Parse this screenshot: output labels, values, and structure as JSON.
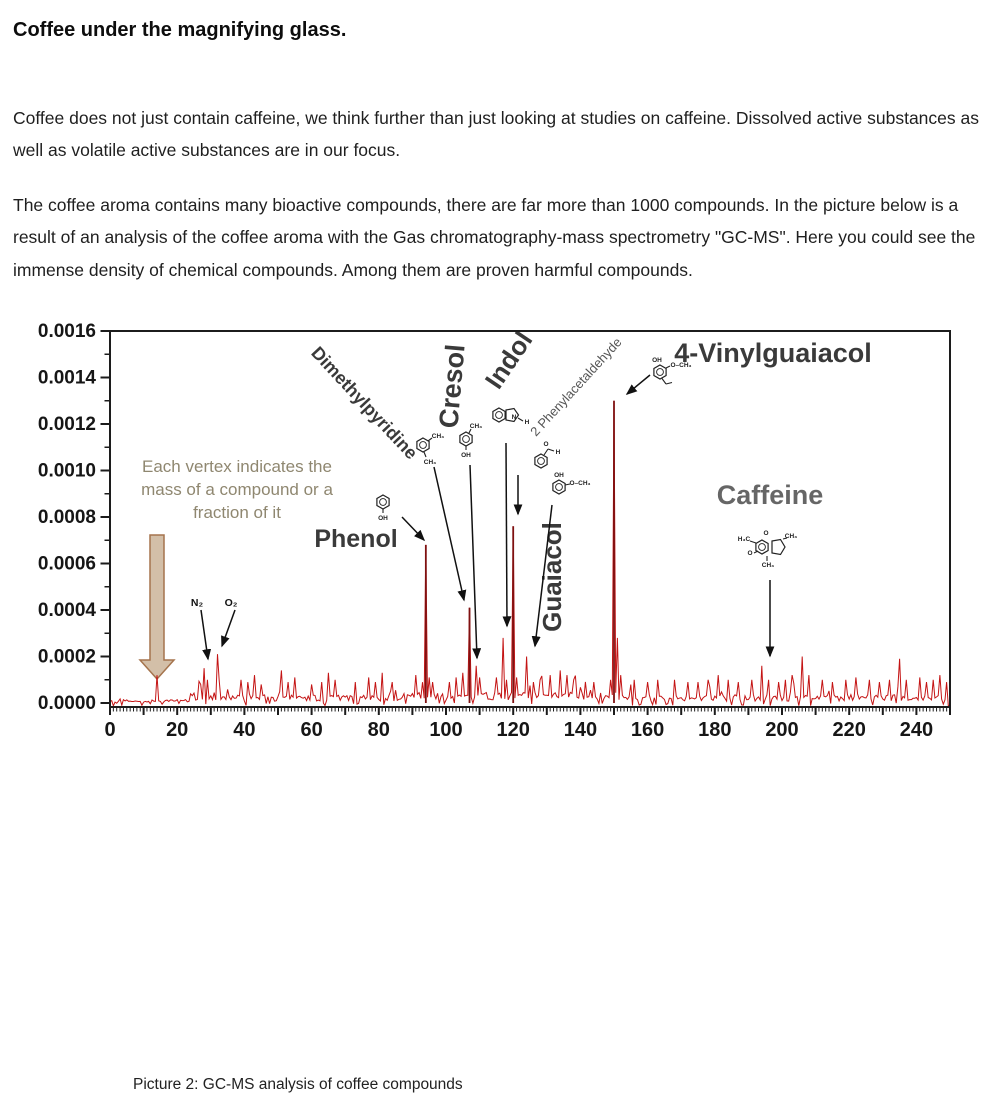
{
  "document": {
    "title": "Coffee under the magnifying glass.",
    "paragraphs": [
      "Coffee does not just contain caffeine, we think further than just looking at studies on caffeine. Dissolved active substances as well as volatile active substances are in our focus.",
      "The coffee aroma contains many bioactive compounds, there are far more than 1000 compounds. In the picture below is a result of an analysis of the coffee aroma with the Gas chromatography-mass spectrometry \"GC-MS\". Here you could see the immense density of chemical compounds. Among them are proven harmful compounds."
    ],
    "caption": "Picture 2: GC-MS analysis of coffee compounds"
  },
  "chart_data": {
    "type": "line",
    "subtype": "mass-spectrum",
    "title": "",
    "xlabel": "",
    "ylabel": "",
    "xlim": [
      0,
      250
    ],
    "ylim": [
      0,
      0.0016
    ],
    "x_tick_labels": [
      0,
      20,
      40,
      60,
      80,
      100,
      120,
      140,
      160,
      180,
      200,
      220,
      240
    ],
    "y_tick_labels": [
      "0.0000",
      "0.0002",
      "0.0004",
      "0.0006",
      "0.0008",
      "0.0010",
      "0.0012",
      "0.0014",
      "0.0016"
    ],
    "grid": false,
    "annotation": {
      "lines": [
        "Each vertex indicates the",
        "mass of a compound or a",
        "fraction of it"
      ]
    },
    "highlight_arrow_mass": 14,
    "labeled_peaks": [
      {
        "name": "nitrogen",
        "label": "N₂",
        "mass": 28,
        "intensity": 0.00015
      },
      {
        "name": "oxygen",
        "label": "O₂",
        "mass": 32,
        "intensity": 0.00021
      },
      {
        "name": "phenol",
        "label": "Phenol",
        "mass": 94,
        "intensity": 0.00068
      },
      {
        "name": "dimethylpyridine",
        "label": "Dimethylpyridine",
        "mass": 107,
        "intensity": 0.00041
      },
      {
        "name": "cresol",
        "label": "Cresol",
        "mass": 109,
        "intensity": 0.00016
      },
      {
        "name": "indol",
        "label": "Indol",
        "mass": 117,
        "intensity": 0.00028
      },
      {
        "name": "phenylacetaldehyde",
        "label": "2 Phenylacetaldehyde",
        "mass": 120,
        "intensity": 0.00076
      },
      {
        "name": "guaiacol",
        "label": "Guaiacol",
        "mass": 124,
        "intensity": 0.0002
      },
      {
        "name": "vinylguaiacol",
        "label": "4-Vinylguaiacol",
        "mass": 150,
        "intensity": 0.0013
      },
      {
        "name": "caffeine",
        "label": "Caffeine",
        "mass": 194,
        "intensity": 0.00016
      }
    ],
    "minor_peaks": [
      [
        14,
        0.00012
      ],
      [
        27,
        8e-05
      ],
      [
        29,
        0.0001
      ],
      [
        39,
        0.0001
      ],
      [
        41,
        9e-05
      ],
      [
        43,
        0.00012
      ],
      [
        45,
        8e-05
      ],
      [
        51,
        0.00014
      ],
      [
        53,
        9e-05
      ],
      [
        55,
        0.00011
      ],
      [
        60,
        8e-05
      ],
      [
        63,
        9e-05
      ],
      [
        65,
        0.00013
      ],
      [
        67,
        0.0001
      ],
      [
        73,
        9e-05
      ],
      [
        77,
        0.00011
      ],
      [
        79,
        9e-05
      ],
      [
        81,
        0.00013
      ],
      [
        84,
        9e-05
      ],
      [
        91,
        0.00012
      ],
      [
        95,
        0.00011
      ],
      [
        96,
        9e-05
      ],
      [
        101,
        9e-05
      ],
      [
        103,
        0.00011
      ],
      [
        105,
        0.00013
      ],
      [
        110,
        0.00011
      ],
      [
        115,
        0.00011
      ],
      [
        118,
        0.0001
      ],
      [
        121,
        0.00011
      ],
      [
        126,
        9e-05
      ],
      [
        128,
        0.0001
      ],
      [
        131,
        0.00012
      ],
      [
        134,
        0.00014
      ],
      [
        136,
        0.00012
      ],
      [
        138,
        0.0001
      ],
      [
        144,
        9e-05
      ],
      [
        149,
        0.0001
      ],
      [
        151,
        0.00028
      ],
      [
        152,
        0.00012
      ],
      [
        156,
        0.0001
      ],
      [
        160,
        9e-05
      ],
      [
        163,
        0.0001
      ],
      [
        168,
        0.0001
      ],
      [
        172,
        9e-05
      ],
      [
        175,
        9e-05
      ],
      [
        178,
        0.0001
      ],
      [
        181,
        0.00012
      ],
      [
        184,
        0.0001
      ],
      [
        187,
        9e-05
      ],
      [
        191,
        0.0001
      ],
      [
        196,
        0.0001
      ],
      [
        199,
        9e-05
      ],
      [
        201,
        0.0001
      ],
      [
        203,
        0.00012
      ],
      [
        206,
        0.0002
      ],
      [
        208,
        0.00012
      ],
      [
        212,
        0.0001
      ],
      [
        215,
        9e-05
      ],
      [
        219,
        0.0001
      ],
      [
        222,
        0.00011
      ],
      [
        226,
        0.0001
      ],
      [
        229,
        9e-05
      ],
      [
        232,
        0.0001
      ],
      [
        235,
        0.00019
      ],
      [
        237,
        0.0001
      ],
      [
        241,
        0.00011
      ],
      [
        243,
        9e-05
      ],
      [
        245,
        0.0001
      ],
      [
        247,
        0.00012
      ],
      [
        249,
        9e-05
      ]
    ],
    "structures": {
      "phenol": [
        "OH"
      ],
      "dimethylpyridine": [
        "CH₃",
        "CH₃"
      ],
      "cresol": [
        "CH₃",
        "OH"
      ],
      "indol": [
        "N",
        "H"
      ],
      "phenylacetaldehyde": [
        "O",
        "H"
      ],
      "guaiacol": [
        "OH",
        "O–CH₃"
      ],
      "vinylguaiacol": [
        "OH",
        "O–CH₃"
      ],
      "caffeine": [
        "H₃C",
        "CH₃",
        "CH₃",
        "O",
        "O"
      ]
    },
    "colors": {
      "trace": "#c41414",
      "trace_dark": "#7f1111",
      "annotation_text": "#8f8770",
      "block_arrow_fill": "#d3bfa8",
      "block_arrow_stroke": "#a5744d",
      "label_dark_gray": "#3a3a3a",
      "caffeine_gray": "#666666",
      "axis": "#1c1c1c"
    }
  }
}
